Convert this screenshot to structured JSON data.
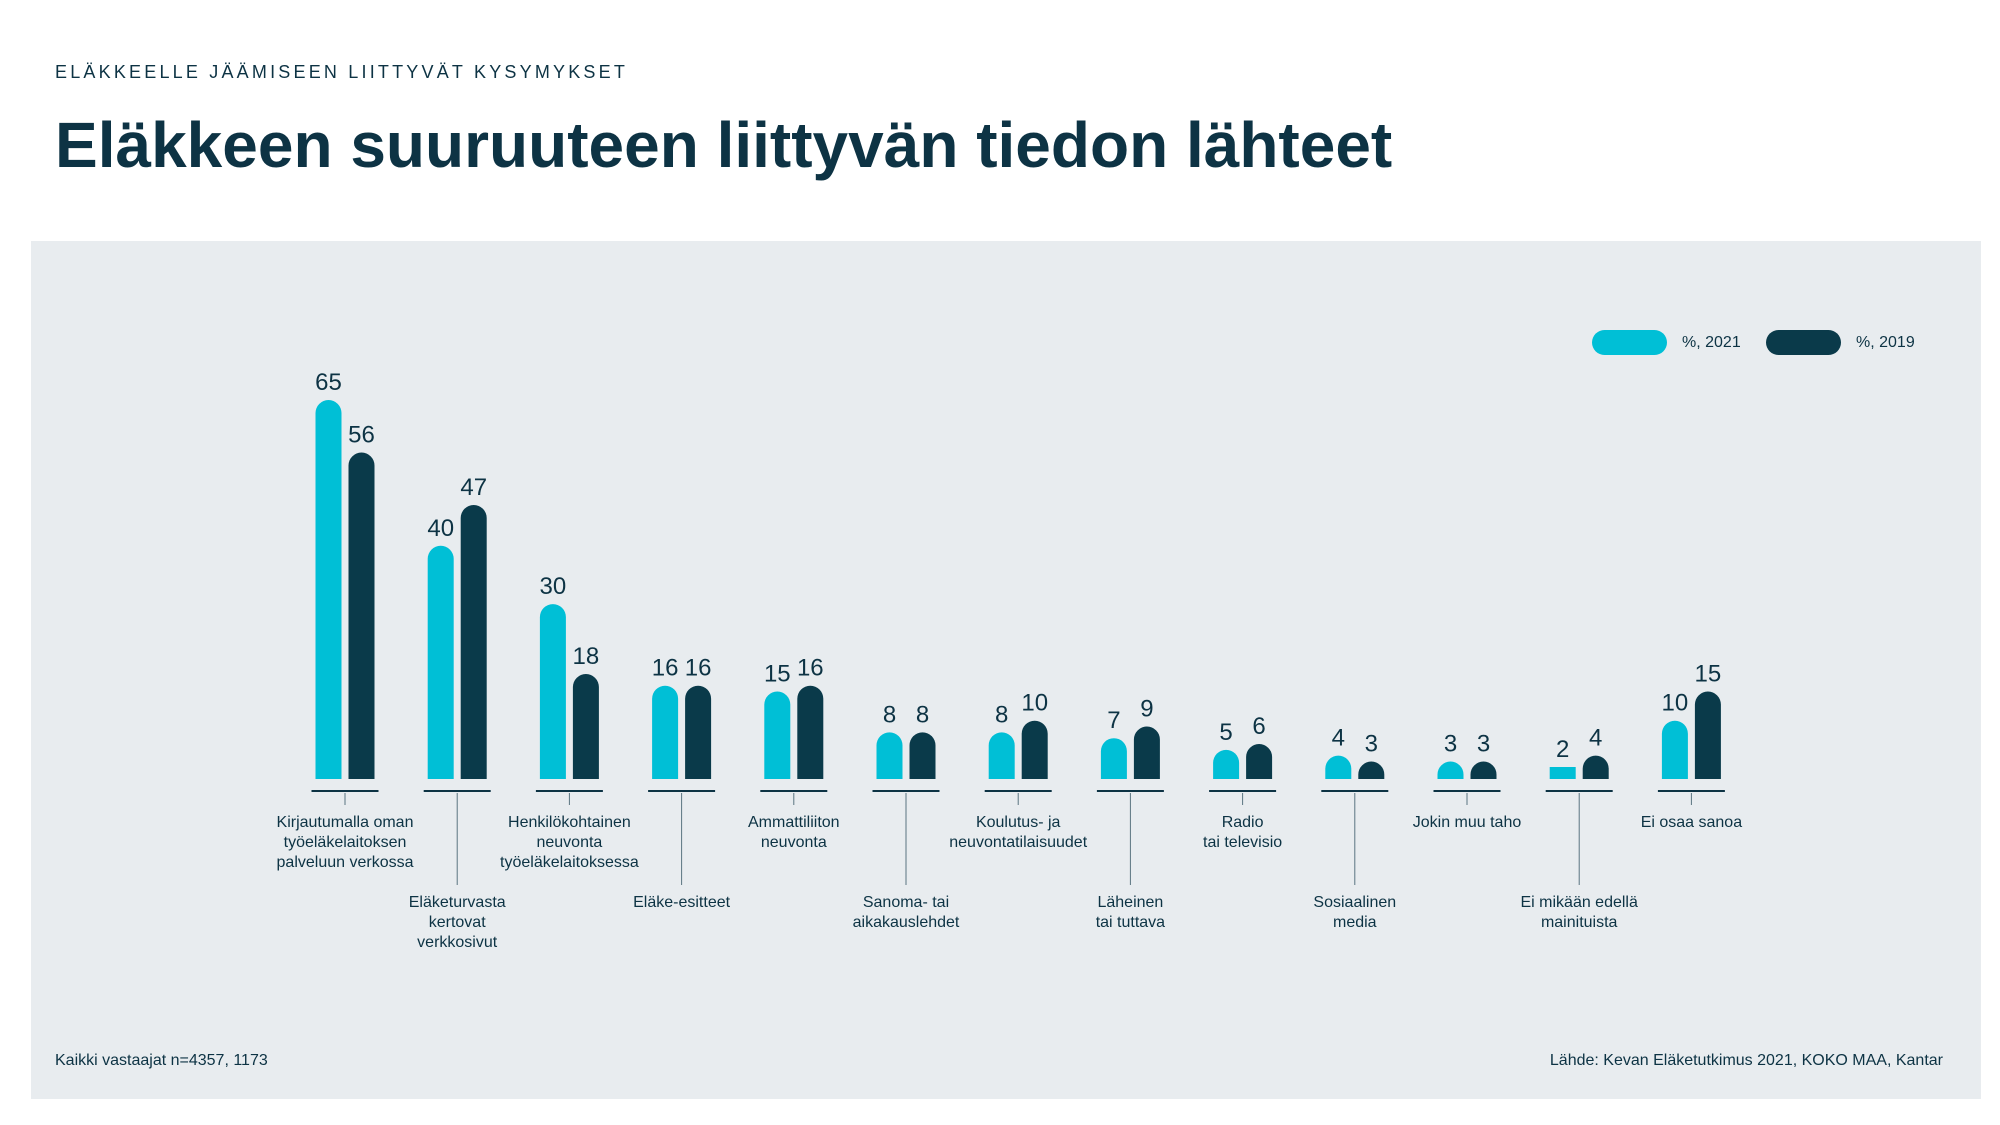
{
  "header": {
    "kicker": "ELÄKKEELLE JÄÄMISEEN LIITTYVÄT KYSYMYKSET",
    "title": "Eläkkeen suuruuteen liittyvän tiedon lähteet"
  },
  "legend": [
    {
      "label": "%, 2021",
      "color": "#00bfd6"
    },
    {
      "label": "%, 2019",
      "color": "#0a3a4a"
    }
  ],
  "footer": {
    "left": "Kaikki vastaajat n=4357, 1173",
    "right": "Lähde: Kevan Eläketutkimus 2021, KOKO MAA, Kantar"
  },
  "chart_data": {
    "type": "bar",
    "categories": [
      [
        "Kirjautumalla oman",
        "työeläkelaitoksen",
        "palveluun verkossa"
      ],
      [
        "Eläketurvasta",
        "kertovat",
        "verkkosivut"
      ],
      [
        "Henkilökohtainen",
        "neuvonta",
        "työeläkelaitoksessa"
      ],
      [
        "Eläke-esitteet"
      ],
      [
        "Ammattiliiton",
        "neuvonta"
      ],
      [
        "Sanoma- tai",
        "aikakauslehdet"
      ],
      [
        "Koulutus- ja",
        "neuvontatilaisuudet"
      ],
      [
        "Läheinen",
        "tai tuttava"
      ],
      [
        "Radio",
        "tai televisio"
      ],
      [
        "Sosiaalinen",
        "media"
      ],
      [
        "Jokin muu taho"
      ],
      [
        "Ei mikään edellä",
        "mainituista"
      ],
      [
        "Ei osaa sanoa"
      ]
    ],
    "series": [
      {
        "name": "%, 2021",
        "color": "#00bfd6",
        "values": [
          65,
          40,
          30,
          16,
          15,
          8,
          8,
          7,
          5,
          4,
          3,
          2,
          10
        ]
      },
      {
        "name": "%, 2019",
        "color": "#0a3a4a",
        "values": [
          56,
          47,
          18,
          16,
          16,
          8,
          10,
          9,
          6,
          3,
          3,
          4,
          15
        ]
      }
    ],
    "label_level": [
      "high",
      "low",
      "high",
      "low",
      "high",
      "low",
      "high",
      "low",
      "high",
      "low",
      "high",
      "low",
      "high"
    ],
    "ylim": [
      0,
      65
    ]
  }
}
